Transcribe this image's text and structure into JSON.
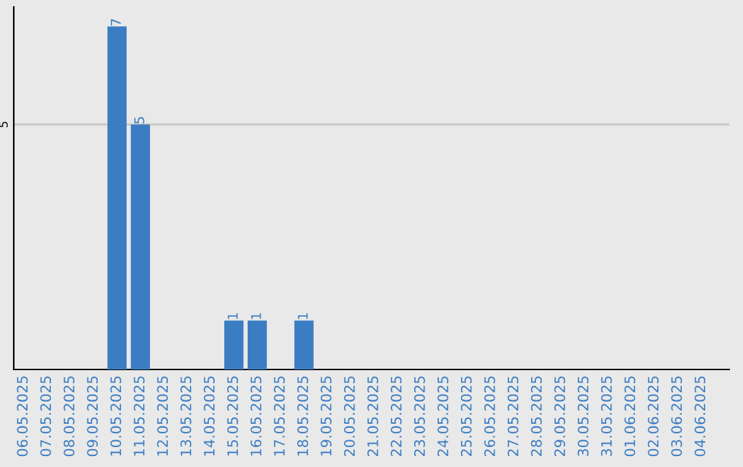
{
  "chart_data": {
    "type": "bar",
    "categories": [
      "06.05.2025",
      "07.05.2025",
      "08.05.2025",
      "09.05.2025",
      "10.05.2025",
      "11.05.2025",
      "12.05.2025",
      "13.05.2025",
      "14.05.2025",
      "15.05.2025",
      "16.05.2025",
      "17.05.2025",
      "18.05.2025",
      "19.05.2025",
      "20.05.2025",
      "21.05.2025",
      "22.05.2025",
      "23.05.2025",
      "24.05.2025",
      "25.05.2025",
      "26.05.2025",
      "27.05.2025",
      "28.05.2025",
      "29.05.2025",
      "30.05.2025",
      "31.05.2025",
      "01.06.2025",
      "02.06.2025",
      "03.06.2025",
      "04.06.2025"
    ],
    "values": [
      0,
      0,
      0,
      0,
      7,
      5,
      0,
      0,
      0,
      1,
      1,
      0,
      1,
      0,
      0,
      0,
      0,
      0,
      0,
      0,
      0,
      0,
      0,
      0,
      0,
      0,
      0,
      0,
      0,
      0
    ],
    "value_labels": [
      null,
      null,
      null,
      null,
      "7",
      "5",
      null,
      null,
      null,
      "1",
      "1",
      null,
      "1",
      null,
      null,
      null,
      null,
      null,
      null,
      null,
      null,
      null,
      null,
      null,
      null,
      null,
      null,
      null,
      null,
      null
    ],
    "color": "#3b7dc2",
    "ylim": [
      0,
      7.4
    ],
    "yticks": [
      5
    ],
    "grid": "y"
  }
}
